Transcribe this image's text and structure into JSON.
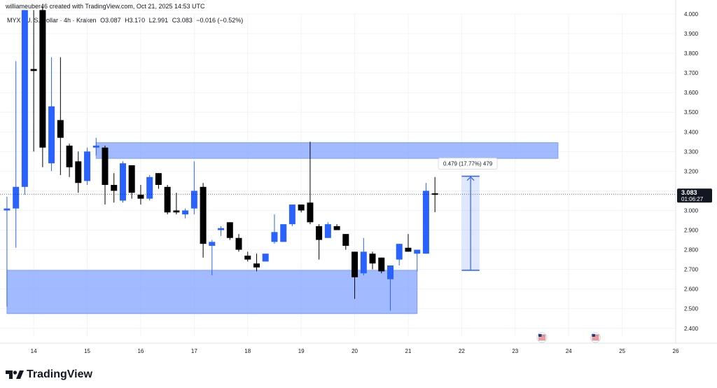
{
  "header": {
    "text": "williameuber46 created with TradingView.com, Oct 21, 2025 14:53 UTC"
  },
  "legend": {
    "symbol": "MYX / U. S. Dollar · 4h · Kraken",
    "open": "O3.087",
    "high": "H3.170",
    "low": "L2.991",
    "close": "C3.083",
    "change": "−0.016 (−0.52%)"
  },
  "price_label": {
    "value": "3.083",
    "countdown": "01:06:27"
  },
  "measure_label": "0.479 (17.77%) 479",
  "footer": {
    "brand": "TradingView"
  },
  "colors": {
    "up": "#2962ff",
    "down": "#000000",
    "zone": "#7b9cff",
    "measure": "#2962ff"
  },
  "chart_data": {
    "type": "candlestick",
    "interval": "4h",
    "xlabels": [
      "14",
      "15",
      "16",
      "17",
      "18",
      "19",
      "20",
      "21",
      "22",
      "23",
      "24",
      "25",
      "26"
    ],
    "yticks": [
      "4.000",
      "3.900",
      "3.800",
      "3.700",
      "3.600",
      "3.500",
      "3.400",
      "3.300",
      "3.200",
      "3.100",
      "3.000",
      "2.900",
      "2.800",
      "2.700",
      "2.600",
      "2.500",
      "2.400"
    ],
    "ylim": [
      2.36,
      4.0
    ],
    "xlim": [
      13.37,
      26.0
    ],
    "candles": [
      {
        "t": 13.5,
        "o": 3.0,
        "h": 3.07,
        "l": 2.51,
        "c": 3.01
      },
      {
        "t": 13.667,
        "o": 3.01,
        "h": 3.76,
        "l": 2.81,
        "c": 3.12
      },
      {
        "t": 13.833,
        "o": 3.12,
        "h": 4.02,
        "l": 3.08,
        "c": 4.02
      },
      {
        "t": 14.0,
        "o": 3.72,
        "h": 4.02,
        "l": 3.3,
        "c": 3.71
      },
      {
        "t": 14.167,
        "o": 4.02,
        "h": 4.04,
        "l": 3.22,
        "c": 3.32
      },
      {
        "t": 14.333,
        "o": 3.24,
        "h": 3.78,
        "l": 3.2,
        "c": 3.53
      },
      {
        "t": 14.5,
        "o": 3.46,
        "h": 3.78,
        "l": 3.18,
        "c": 3.37
      },
      {
        "t": 14.667,
        "o": 3.33,
        "h": 3.34,
        "l": 3.17,
        "c": 3.22
      },
      {
        "t": 14.833,
        "o": 3.25,
        "h": 3.3,
        "l": 3.09,
        "c": 3.14
      },
      {
        "t": 15.0,
        "o": 3.15,
        "h": 3.32,
        "l": 3.13,
        "c": 3.3
      },
      {
        "t": 15.167,
        "o": 3.32,
        "h": 3.37,
        "l": 3.28,
        "c": 3.33
      },
      {
        "t": 15.333,
        "o": 3.32,
        "h": 3.33,
        "l": 3.03,
        "c": 3.13
      },
      {
        "t": 15.5,
        "o": 3.13,
        "h": 3.19,
        "l": 3.04,
        "c": 3.1
      },
      {
        "t": 15.667,
        "o": 3.05,
        "h": 3.25,
        "l": 3.04,
        "c": 3.24
      },
      {
        "t": 15.833,
        "o": 3.23,
        "h": 3.23,
        "l": 3.06,
        "c": 3.09
      },
      {
        "t": 16.0,
        "o": 3.08,
        "h": 3.13,
        "l": 3.03,
        "c": 3.06
      },
      {
        "t": 16.167,
        "o": 3.06,
        "h": 3.18,
        "l": 3.05,
        "c": 3.17
      },
      {
        "t": 16.333,
        "o": 3.19,
        "h": 3.19,
        "l": 3.11,
        "c": 3.13
      },
      {
        "t": 16.5,
        "o": 3.12,
        "h": 3.13,
        "l": 2.98,
        "c": 2.99
      },
      {
        "t": 16.667,
        "o": 3.0,
        "h": 3.09,
        "l": 2.98,
        "c": 2.99
      },
      {
        "t": 16.833,
        "o": 2.98,
        "h": 3.01,
        "l": 2.96,
        "c": 3.0
      },
      {
        "t": 17.0,
        "o": 3.01,
        "h": 3.25,
        "l": 2.98,
        "c": 3.1
      },
      {
        "t": 17.167,
        "o": 3.12,
        "h": 3.14,
        "l": 2.76,
        "c": 2.83
      },
      {
        "t": 17.333,
        "o": 2.82,
        "h": 2.85,
        "l": 2.67,
        "c": 2.84
      },
      {
        "t": 17.5,
        "o": 2.9,
        "h": 2.92,
        "l": 2.87,
        "c": 2.91
      },
      {
        "t": 17.667,
        "o": 2.94,
        "h": 2.94,
        "l": 2.85,
        "c": 2.86
      },
      {
        "t": 17.833,
        "o": 2.86,
        "h": 2.88,
        "l": 2.79,
        "c": 2.8
      },
      {
        "t": 18.0,
        "o": 2.77,
        "h": 2.79,
        "l": 2.74,
        "c": 2.75
      },
      {
        "t": 18.167,
        "o": 2.73,
        "h": 2.78,
        "l": 2.69,
        "c": 2.71
      },
      {
        "t": 18.333,
        "o": 2.74,
        "h": 2.78,
        "l": 2.74,
        "c": 2.78
      },
      {
        "t": 18.5,
        "o": 2.84,
        "h": 2.98,
        "l": 2.83,
        "c": 2.89
      },
      {
        "t": 18.667,
        "o": 2.84,
        "h": 2.93,
        "l": 2.84,
        "c": 2.93
      },
      {
        "t": 18.833,
        "o": 2.93,
        "h": 3.03,
        "l": 2.92,
        "c": 3.03
      },
      {
        "t": 19.0,
        "o": 3.03,
        "h": 3.03,
        "l": 2.99,
        "c": 3.0
      },
      {
        "t": 19.167,
        "o": 3.04,
        "h": 3.35,
        "l": 2.93,
        "c": 2.94
      },
      {
        "t": 19.333,
        "o": 2.92,
        "h": 2.93,
        "l": 2.75,
        "c": 2.85
      },
      {
        "t": 19.5,
        "o": 2.86,
        "h": 2.94,
        "l": 2.86,
        "c": 2.93
      },
      {
        "t": 19.667,
        "o": 2.92,
        "h": 2.93,
        "l": 2.9,
        "c": 2.9
      },
      {
        "t": 19.833,
        "o": 2.88,
        "h": 2.88,
        "l": 2.8,
        "c": 2.82
      },
      {
        "t": 20.0,
        "o": 2.79,
        "h": 2.79,
        "l": 2.55,
        "c": 2.66
      },
      {
        "t": 20.167,
        "o": 2.68,
        "h": 2.86,
        "l": 2.67,
        "c": 2.79
      },
      {
        "t": 20.333,
        "o": 2.78,
        "h": 2.79,
        "l": 2.7,
        "c": 2.73
      },
      {
        "t": 20.5,
        "o": 2.76,
        "h": 2.76,
        "l": 2.68,
        "c": 2.69
      },
      {
        "t": 20.667,
        "o": 2.65,
        "h": 2.72,
        "l": 2.49,
        "c": 2.72
      },
      {
        "t": 20.833,
        "o": 2.75,
        "h": 2.83,
        "l": 2.72,
        "c": 2.83
      },
      {
        "t": 21.0,
        "o": 2.81,
        "h": 2.88,
        "l": 2.79,
        "c": 2.79
      },
      {
        "t": 21.167,
        "o": 2.78,
        "h": 2.8,
        "l": 2.69,
        "c": 2.8
      },
      {
        "t": 21.333,
        "o": 2.78,
        "h": 3.14,
        "l": 2.78,
        "c": 3.1
      },
      {
        "t": 21.5,
        "o": 3.087,
        "h": 3.17,
        "l": 2.991,
        "c": 3.083
      }
    ],
    "zones": [
      {
        "name": "supply-zone",
        "t1": 15.167,
        "t2": 23.8,
        "y1": 3.345,
        "y2": 3.265
      },
      {
        "name": "demand-zone",
        "t1": 13.5,
        "t2": 21.167,
        "y1": 2.695,
        "y2": 2.475
      }
    ],
    "measure": {
      "t1": 22.0,
      "t2": 22.333,
      "from": 2.695,
      "to": 3.174
    },
    "current_price": 3.083,
    "event_markers": [
      {
        "t": 23.5,
        "icon": "us-flag-icon"
      },
      {
        "t": 24.5,
        "icon": "us-flag-icon"
      }
    ]
  }
}
